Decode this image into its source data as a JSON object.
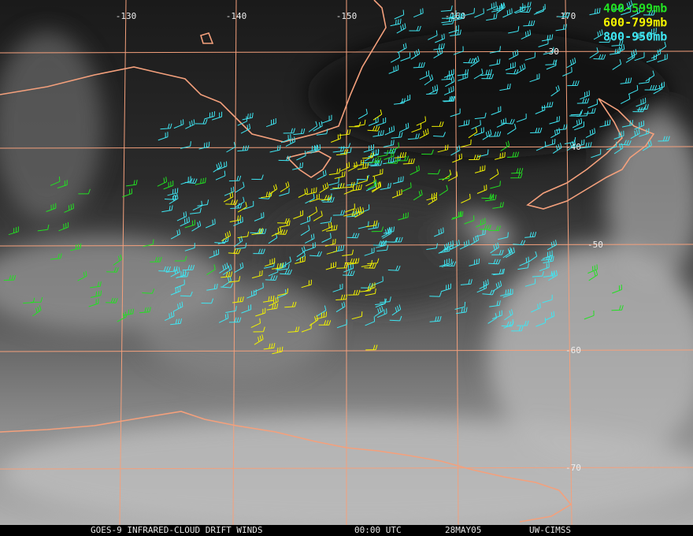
{
  "graticule": {
    "longitudes": [
      "-130",
      "-140",
      "-150",
      "-160",
      "-170"
    ],
    "latitudes": [
      "-30",
      "-40",
      "-50",
      "-60",
      "-70"
    ]
  },
  "legend": {
    "items": [
      {
        "label": "400-599mb",
        "color": "#22e022"
      },
      {
        "label": "600-799mb",
        "color": "#f2f200"
      },
      {
        "label": "800-950mb",
        "color": "#3fe6f2"
      }
    ]
  },
  "footer": {
    "product": "GOES-9 INFRARED-CLOUD DRIFT WINDS",
    "time": "00:00 UTC",
    "date": "28MAY05",
    "source": "UW-CIMSS"
  }
}
